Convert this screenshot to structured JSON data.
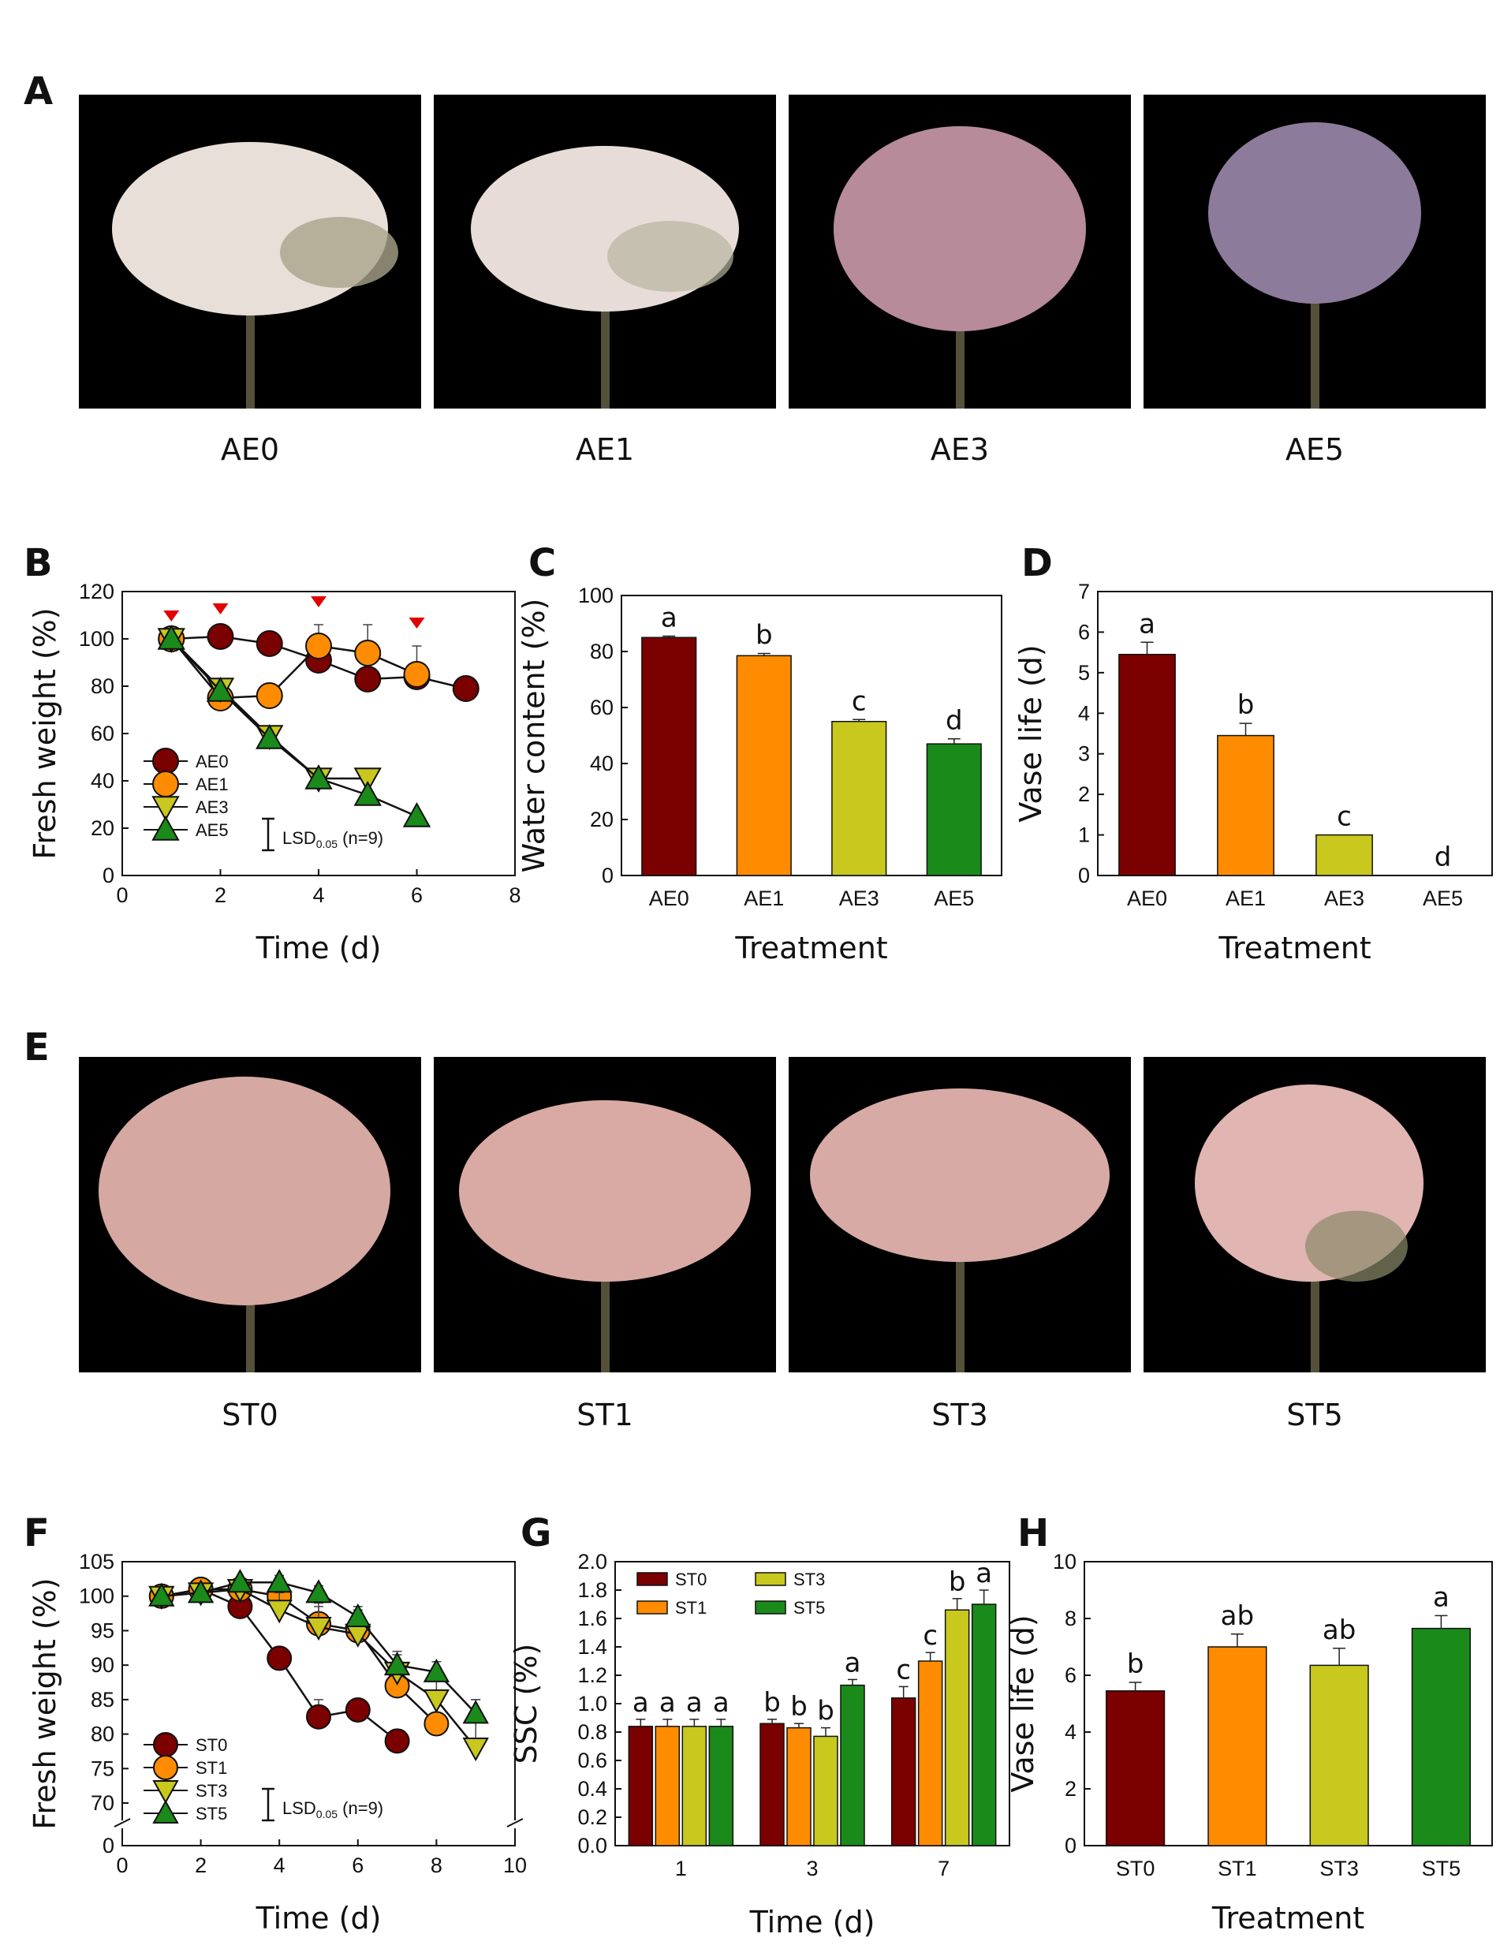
{
  "panels": {
    "A": "A",
    "B": "B",
    "C": "C",
    "D": "D",
    "E": "E",
    "F": "F",
    "G": "G",
    "H": "H"
  },
  "photos_top": {
    "captions": [
      "AE0",
      "AE1",
      "AE3",
      "AE5"
    ],
    "tints": [
      "#e9dfd9",
      "#e7dcd7",
      "#b88b9a",
      "#8d7b9c"
    ]
  },
  "photos_bottom": {
    "captions": [
      "ST0",
      "ST1",
      "ST3",
      "ST5"
    ],
    "tints": [
      "#d6a8a2",
      "#d9aaa4",
      "#d8aaa6",
      "#e0b5b2"
    ]
  },
  "colors": {
    "s0": "#7b0000",
    "s1": "#ff8c00",
    "s3": "#c8c81e",
    "s5": "#1a8a1a",
    "marker": "#e00000"
  },
  "chart_data": [
    {
      "id": "B",
      "type": "line",
      "xlabel": "Time (d)",
      "ylabel": "Fresh weight (%)",
      "xlim": [
        0,
        8
      ],
      "ylim": [
        0,
        120
      ],
      "xticks": [
        0,
        2,
        4,
        6,
        8
      ],
      "yticks": [
        0,
        20,
        40,
        60,
        80,
        100,
        120
      ],
      "series": [
        {
          "name": "AE0",
          "marker": "circle",
          "color": "#7b0000",
          "x": [
            1,
            2,
            3,
            4,
            5,
            6,
            7
          ],
          "y": [
            100,
            101,
            98,
            91,
            83,
            84,
            79
          ],
          "err": [
            0,
            2,
            2,
            2,
            2,
            3,
            2
          ]
        },
        {
          "name": "AE1",
          "marker": "circle",
          "color": "#ff8c00",
          "x": [
            1,
            2,
            3,
            4,
            5,
            6
          ],
          "y": [
            100,
            75,
            76,
            97,
            94,
            85
          ],
          "err": [
            0,
            2,
            5,
            9,
            12,
            12
          ]
        },
        {
          "name": "AE3",
          "marker": "triangle-down",
          "color": "#c8c81e",
          "x": [
            1,
            2,
            3,
            4,
            5
          ],
          "y": [
            100,
            79,
            59,
            41,
            41
          ],
          "err": [
            0,
            2,
            2,
            2,
            2
          ]
        },
        {
          "name": "AE5",
          "marker": "triangle-up",
          "color": "#1a8a1a",
          "x": [
            1,
            2,
            3,
            4,
            5,
            6
          ],
          "y": [
            100,
            78,
            58,
            41,
            34,
            25
          ],
          "err": [
            0,
            2,
            2,
            2,
            2,
            2
          ]
        }
      ],
      "significance_markers_x": [
        1,
        2,
        4,
        6
      ],
      "lsd_label": "LSD",
      "lsd_sub": "0.05",
      "lsd_n": " (n=9)"
    },
    {
      "id": "C",
      "type": "bar",
      "xlabel": "Treatment",
      "ylabel": "Water content (%)",
      "ylim": [
        0,
        100
      ],
      "yticks": [
        0,
        20,
        40,
        60,
        80,
        100
      ],
      "categories": [
        "AE0",
        "AE1",
        "AE3",
        "AE5"
      ],
      "values": [
        85,
        78.5,
        55,
        47
      ],
      "errors": [
        0.5,
        0.8,
        0.7,
        1.8
      ],
      "letters": [
        "a",
        "b",
        "c",
        "d"
      ]
    },
    {
      "id": "D",
      "type": "bar",
      "xlabel": "Treatment",
      "ylabel": "Vase life (d)",
      "ylim": [
        0,
        7
      ],
      "yticks": [
        0,
        1,
        2,
        3,
        4,
        5,
        6,
        7
      ],
      "categories": [
        "AE0",
        "AE1",
        "AE3",
        "AE5"
      ],
      "values": [
        5.45,
        3.45,
        1.0,
        0
      ],
      "errors": [
        0.3,
        0.3,
        0,
        0
      ],
      "letters": [
        "a",
        "b",
        "c",
        "d"
      ]
    },
    {
      "id": "F",
      "type": "line",
      "xlabel": "Time (d)",
      "ylabel": "Fresh weight (%)",
      "xlim": [
        0,
        10
      ],
      "ylim": [
        70,
        105
      ],
      "xticks": [
        0,
        2,
        4,
        6,
        8,
        10
      ],
      "yticks": [
        0,
        70,
        75,
        80,
        85,
        90,
        95,
        100,
        105
      ],
      "axis_break": true,
      "series": [
        {
          "name": "ST0",
          "marker": "circle",
          "color": "#7b0000",
          "x": [
            1,
            2,
            3,
            4,
            5,
            6,
            7
          ],
          "y": [
            100,
            101,
            98.5,
            91,
            82.5,
            83.5,
            79
          ],
          "err": [
            0,
            0.5,
            0.8,
            0.8,
            2.5,
            1.0,
            0.8
          ]
        },
        {
          "name": "ST1",
          "marker": "circle",
          "color": "#ff8c00",
          "x": [
            1,
            2,
            3,
            4,
            5,
            6,
            7,
            8
          ],
          "y": [
            100,
            101,
            101,
            100,
            96,
            95,
            87,
            81.5
          ],
          "err": [
            0,
            0.5,
            1.5,
            2.5,
            3.0,
            3.0,
            3.0,
            4.0
          ]
        },
        {
          "name": "ST3",
          "marker": "triangle-down",
          "color": "#c8c81e",
          "x": [
            1,
            2,
            3,
            4,
            5,
            6,
            7,
            8,
            9
          ],
          "y": [
            100,
            100.5,
            101,
            98,
            95.5,
            94.5,
            89,
            85,
            78
          ],
          "err": [
            0,
            0.5,
            1.0,
            2.5,
            3.0,
            2.5,
            3.0,
            4.5,
            7.0
          ]
        },
        {
          "name": "ST5",
          "marker": "triangle-up",
          "color": "#1a8a1a",
          "x": [
            1,
            2,
            3,
            4,
            5,
            6,
            7,
            8,
            9
          ],
          "y": [
            100,
            100.5,
            102,
            102,
            100.5,
            97,
            90,
            89,
            83
          ],
          "err": [
            0,
            0.5,
            0.5,
            1.0,
            1.0,
            1.5,
            1.5,
            1.5,
            2.0
          ]
        }
      ],
      "lsd_label": "LSD",
      "lsd_sub": "0.05",
      "lsd_n": " (n=9)"
    },
    {
      "id": "G",
      "type": "bar",
      "xlabel": "Time (d)",
      "ylabel": "SSC (%)",
      "ylim": [
        0,
        2.0
      ],
      "yticks": [
        "0.0",
        "0.2",
        "0.4",
        "0.6",
        "0.8",
        "1.0",
        "1.2",
        "1.4",
        "1.6",
        "1.8",
        "2.0"
      ],
      "categories": [
        "1",
        "3",
        "7"
      ],
      "series": [
        {
          "name": "ST0",
          "color": "#7b0000",
          "values": [
            0.84,
            0.86,
            1.04
          ],
          "errors": [
            0.05,
            0.03,
            0.08
          ],
          "letters": [
            "a",
            "b",
            "c"
          ]
        },
        {
          "name": "ST1",
          "color": "#ff8c00",
          "values": [
            0.84,
            0.83,
            1.3
          ],
          "errors": [
            0.05,
            0.03,
            0.06
          ],
          "letters": [
            "a",
            "b",
            "c"
          ]
        },
        {
          "name": "ST3",
          "color": "#c8c81e",
          "values": [
            0.84,
            0.77,
            1.66
          ],
          "errors": [
            0.05,
            0.06,
            0.08
          ],
          "letters": [
            "a",
            "b",
            "b"
          ]
        },
        {
          "name": "ST5",
          "color": "#1a8a1a",
          "values": [
            0.84,
            1.13,
            1.7
          ],
          "errors": [
            0.05,
            0.04,
            0.1
          ],
          "letters": [
            "a",
            "a",
            "a"
          ]
        }
      ]
    },
    {
      "id": "H",
      "type": "bar",
      "xlabel": "Treatment",
      "ylabel": "Vase life (d)",
      "ylim": [
        0,
        10
      ],
      "yticks": [
        0,
        2,
        4,
        6,
        8,
        10
      ],
      "categories": [
        "ST0",
        "ST1",
        "ST3",
        "ST5"
      ],
      "values": [
        5.45,
        7.0,
        6.35,
        7.65
      ],
      "errors": [
        0.3,
        0.45,
        0.6,
        0.45
      ],
      "letters": [
        "b",
        "ab",
        "ab",
        "a"
      ]
    }
  ]
}
